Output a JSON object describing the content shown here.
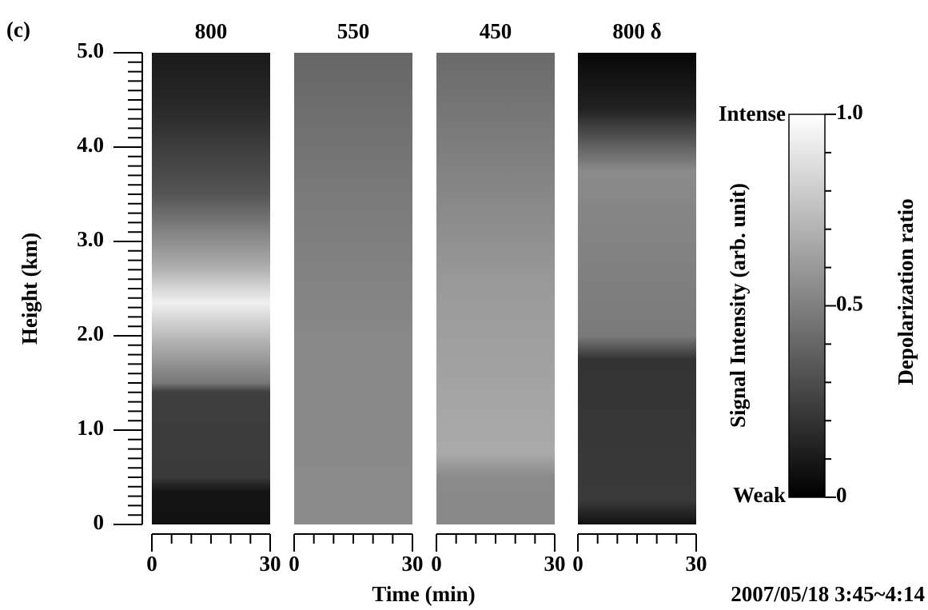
{
  "chart_data": {
    "type": "heatmap",
    "panel_label": "(c)",
    "panels": [
      "800",
      "550",
      "450",
      "800 δ"
    ],
    "ylabel": "Height (km)",
    "ylim": [
      0,
      5
    ],
    "yticks": [
      0,
      {
        "value": 1,
        "label": "1.0"
      },
      {
        "value": 2,
        "label": "2.0"
      },
      {
        "value": 3,
        "label": "3.0"
      },
      {
        "value": 4,
        "label": "4.0"
      },
      {
        "value": 5,
        "label": "5.0"
      }
    ],
    "yminorticks": [
      0.1,
      0.2,
      0.3,
      0.4,
      0.5,
      0.6,
      0.7,
      0.8,
      0.9,
      1.1,
      1.2,
      1.3,
      1.4,
      1.5,
      1.6,
      1.7,
      1.8,
      1.9,
      2.1,
      2.2,
      2.3,
      2.4,
      2.5,
      2.6,
      2.7,
      2.8,
      2.9,
      3.1,
      3.2,
      3.3,
      3.4,
      3.5,
      3.6,
      3.7,
      3.8,
      3.9,
      4.1,
      4.2,
      4.3,
      4.4,
      4.5,
      4.6,
      4.7,
      4.8,
      4.9
    ],
    "xlabel": "Time (min)",
    "xlim": [
      0,
      30
    ],
    "xticks": [
      0,
      30
    ],
    "xminorticks": [
      5,
      10,
      15,
      20,
      25
    ],
    "colorbar": {
      "top_label": "Intense",
      "bottom_label": "Weak",
      "label": "Signal Intensity (arb. unit)",
      "axis_label": "Depolarization ratio",
      "lim": [
        0,
        1
      ],
      "ticks": [
        0,
        0.5,
        {
          "value": 1,
          "label": "1.0"
        }
      ],
      "minorticks": [
        0.1,
        0.2,
        0.3,
        0.4,
        0.6,
        0.7,
        0.8,
        0.9
      ]
    },
    "date": "2007/05/18 3:45~4:14"
  }
}
